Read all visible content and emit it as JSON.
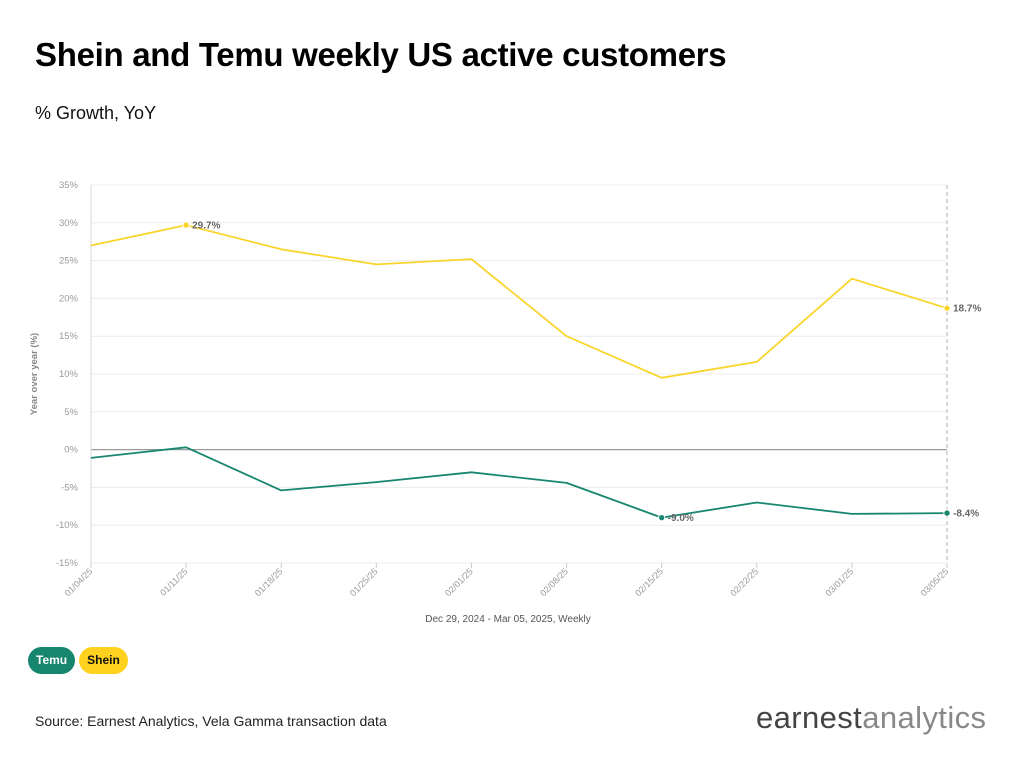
{
  "header": {
    "title": "Shein and Temu weekly US active customers",
    "subtitle": "% Growth, YoY"
  },
  "legend": {
    "temu": "Temu",
    "shein": "Shein"
  },
  "footer": {
    "source": "Source: Earnest Analytics, Vela Gamma transaction data",
    "logo_bold": "earnest",
    "logo_light": "analytics"
  },
  "colors": {
    "temu": "#17866f",
    "shein": "#f9d52c",
    "grid": "#ececec",
    "zero": "#9a9a9a",
    "axis_text": "#9a9a9a"
  },
  "chart_data": {
    "type": "line",
    "x": [
      "01/04/25",
      "01/11/25",
      "01/18/25",
      "01/25/25",
      "02/01/25",
      "02/08/25",
      "02/15/25",
      "02/22/25",
      "03/01/25",
      "03/05/25"
    ],
    "xlabel": "Dec 29, 2024 - Mar 05, 2025, Weekly",
    "ylabel": "Year over year (%)",
    "ylim": [
      -15,
      35
    ],
    "yticks": [
      -15,
      -10,
      -5,
      0,
      5,
      10,
      15,
      20,
      25,
      30,
      35
    ],
    "ytick_labels": [
      "-15%",
      "-10%",
      "-5%",
      "0%",
      "5%",
      "10%",
      "15%",
      "20%",
      "25%",
      "30%",
      "35%"
    ],
    "grid": true,
    "series": [
      {
        "name": "Shein",
        "color": "#f9d52c",
        "values": [
          27.0,
          29.7,
          26.5,
          24.5,
          25.2,
          15.0,
          9.5,
          11.6,
          22.6,
          18.7
        ]
      },
      {
        "name": "Temu",
        "color": "#17866f",
        "values": [
          -1.1,
          0.3,
          -5.4,
          -4.3,
          -3.0,
          -4.4,
          -9.0,
          -7.0,
          -8.5,
          -8.4
        ]
      }
    ],
    "annotations": [
      {
        "series": "Shein",
        "x": "01/11/25",
        "label": "29.7%"
      },
      {
        "series": "Shein",
        "x": "03/05/25",
        "label": "18.7%"
      },
      {
        "series": "Temu",
        "x": "02/15/25",
        "label": "-9.0%"
      },
      {
        "series": "Temu",
        "x": "03/05/25",
        "label": "-8.4%"
      }
    ]
  }
}
